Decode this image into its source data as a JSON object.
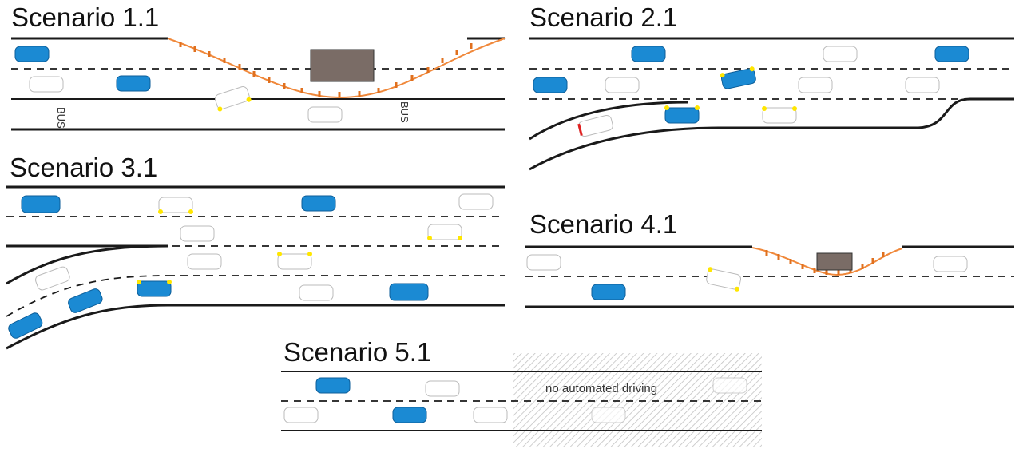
{
  "colors": {
    "automated_car": "#1b8ad3",
    "other_car": "#ffffff",
    "road_line": "#1a1a1a",
    "cone_line": "#f0883a",
    "obstacle": "#7a6c66",
    "indicator": "#ffe600",
    "brake_light": "#e02020",
    "hatch": "#bbbbbb"
  },
  "scenarios": [
    {
      "title": "Scenario 1.1",
      "bus_labels": [
        "BUS",
        "BUS"
      ]
    },
    {
      "title": "Scenario 2.1"
    },
    {
      "title": "Scenario 3.1"
    },
    {
      "title": "Scenario 4.1"
    },
    {
      "title": "Scenario 5.1",
      "zone_label": "no automated driving"
    }
  ]
}
